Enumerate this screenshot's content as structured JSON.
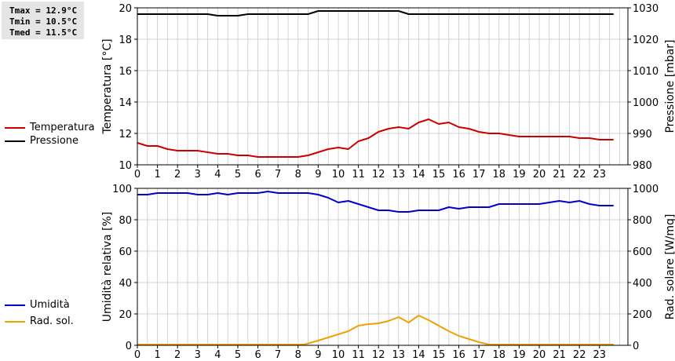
{
  "stats": {
    "tmax": "Tmax = 12.9°C",
    "tmin": "Tmin = 10.5°C",
    "tmed": "Tmed = 11.5°C"
  },
  "colors": {
    "temperature": "#cc0000",
    "pressure": "#000000",
    "humidity": "#0000cc",
    "radiation": "#f0a000",
    "grid": "#d3d3d3"
  },
  "chart_data": [
    {
      "type": "line",
      "x_ticks": [
        "0",
        "1",
        "2",
        "3",
        "4",
        "5",
        "6",
        "7",
        "8",
        "9",
        "10",
        "11",
        "12",
        "13",
        "14",
        "15",
        "16",
        "17",
        "18",
        "19",
        "20",
        "21",
        "22",
        "23"
      ],
      "y_label": "Temperatura [°C]",
      "y2_label": "Pressione [mbar]",
      "ylim": [
        10,
        20
      ],
      "y_ticks": [
        "10",
        "12",
        "14",
        "16",
        "18",
        "20"
      ],
      "y2lim": [
        980,
        1030
      ],
      "y2_ticks": [
        "980",
        "990",
        "1000",
        "1010",
        "1020",
        "1030"
      ],
      "grid": true,
      "series": [
        {
          "name": "Temperatura",
          "axis": "left",
          "color": "#cc0000",
          "x": [
            0,
            0.5,
            1,
            1.5,
            2,
            2.5,
            3,
            3.5,
            4,
            4.5,
            5,
            5.5,
            6,
            6.5,
            7,
            7.5,
            8,
            8.5,
            9,
            9.5,
            10,
            10.5,
            11,
            11.5,
            12,
            12.5,
            13,
            13.5,
            14,
            14.5,
            15,
            15.5,
            16,
            16.5,
            17,
            17.5,
            18,
            18.5,
            19,
            19.5,
            20,
            20.5,
            21,
            21.5,
            22,
            22.5,
            23,
            23.7
          ],
          "values": [
            11.4,
            11.2,
            11.2,
            11.0,
            10.9,
            10.9,
            10.9,
            10.8,
            10.7,
            10.7,
            10.6,
            10.6,
            10.5,
            10.5,
            10.5,
            10.5,
            10.5,
            10.6,
            10.8,
            11.0,
            11.1,
            11.0,
            11.5,
            11.7,
            12.1,
            12.3,
            12.4,
            12.3,
            12.7,
            12.9,
            12.6,
            12.7,
            12.4,
            12.3,
            12.1,
            12.0,
            12.0,
            11.9,
            11.8,
            11.8,
            11.8,
            11.8,
            11.8,
            11.8,
            11.7,
            11.7,
            11.6,
            11.6
          ]
        },
        {
          "name": "Pressione",
          "axis": "right",
          "color": "#000000",
          "x": [
            0,
            0.5,
            1,
            1.5,
            2,
            2.5,
            3,
            3.5,
            4,
            4.5,
            5,
            5.5,
            6,
            6.5,
            7,
            7.5,
            8,
            8.5,
            9,
            9.5,
            10,
            10.5,
            11,
            11.5,
            12,
            12.5,
            13,
            13.5,
            14,
            14.5,
            15,
            15.5,
            16,
            16.5,
            17,
            17.5,
            18,
            18.5,
            19,
            19.5,
            20,
            20.5,
            21,
            21.5,
            22,
            22.5,
            23,
            23.7
          ],
          "values": [
            1028,
            1028,
            1028,
            1028,
            1028,
            1028,
            1028,
            1028,
            1027.5,
            1027.5,
            1027.5,
            1028,
            1028,
            1028,
            1028,
            1028,
            1028,
            1028,
            1029,
            1029,
            1029,
            1029,
            1029,
            1029,
            1029,
            1029,
            1029,
            1028,
            1028,
            1028,
            1028,
            1028,
            1028,
            1028,
            1028,
            1028,
            1028,
            1028,
            1028,
            1028,
            1028,
            1028,
            1028,
            1028,
            1028,
            1028,
            1028,
            1028
          ]
        }
      ]
    },
    {
      "type": "line",
      "x_ticks": [
        "0",
        "1",
        "2",
        "3",
        "4",
        "5",
        "6",
        "7",
        "8",
        "9",
        "10",
        "11",
        "12",
        "13",
        "14",
        "15",
        "16",
        "17",
        "18",
        "19",
        "20",
        "21",
        "22",
        "23"
      ],
      "y_label": "Umidità relativa [%]",
      "y2_label": "Rad. solare [W/mq]",
      "ylim": [
        0,
        100
      ],
      "y_ticks": [
        "0",
        "20",
        "40",
        "60",
        "80",
        "100"
      ],
      "y2lim": [
        0,
        1000
      ],
      "y2_ticks": [
        "0",
        "200",
        "400",
        "600",
        "800",
        "1000"
      ],
      "grid": true,
      "series": [
        {
          "name": "Umidità",
          "axis": "left",
          "color": "#0000cc",
          "x": [
            0,
            0.5,
            1,
            1.5,
            2,
            2.5,
            3,
            3.5,
            4,
            4.5,
            5,
            5.5,
            6,
            6.5,
            7,
            7.5,
            8,
            8.5,
            9,
            9.5,
            10,
            10.5,
            11,
            11.5,
            12,
            12.5,
            13,
            13.5,
            14,
            14.5,
            15,
            15.5,
            16,
            16.5,
            17,
            17.5,
            18,
            18.5,
            19,
            19.5,
            20,
            20.5,
            21,
            21.5,
            22,
            22.5,
            23,
            23.7
          ],
          "values": [
            96,
            96,
            97,
            97,
            97,
            97,
            96,
            96,
            97,
            96,
            97,
            97,
            97,
            98,
            97,
            97,
            97,
            97,
            96,
            94,
            91,
            92,
            90,
            88,
            86,
            86,
            85,
            85,
            86,
            86,
            86,
            88,
            87,
            88,
            88,
            88,
            90,
            90,
            90,
            90,
            90,
            91,
            92,
            91,
            92,
            90,
            89,
            89
          ]
        },
        {
          "name": "Rad. sol.",
          "axis": "right",
          "color": "#f0a000",
          "x": [
            0,
            1,
            2,
            3,
            4,
            5,
            6,
            7,
            8,
            8.3,
            9,
            9.5,
            10,
            10.5,
            11,
            11.5,
            12,
            12.5,
            13,
            13.5,
            14,
            14.5,
            15,
            15.5,
            16,
            16.5,
            17,
            17.5,
            18,
            19,
            20,
            21,
            22,
            23,
            23.7
          ],
          "values": [
            5,
            5,
            5,
            5,
            5,
            5,
            5,
            5,
            5,
            5,
            30,
            50,
            70,
            90,
            125,
            135,
            140,
            155,
            180,
            145,
            190,
            160,
            125,
            90,
            60,
            40,
            20,
            5,
            5,
            5,
            5,
            5,
            5,
            5,
            5
          ]
        }
      ]
    }
  ],
  "legend": [
    {
      "label": "Temperatura",
      "color": "#cc0000"
    },
    {
      "label": "Pressione",
      "color": "#000000"
    },
    {
      "label": "Umidità",
      "color": "#0000cc"
    },
    {
      "label": "Rad. sol.",
      "color": "#f0a000"
    }
  ]
}
